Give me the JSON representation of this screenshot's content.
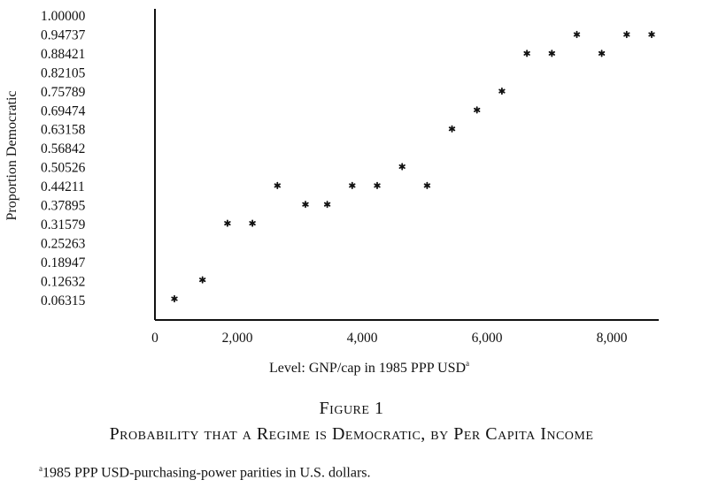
{
  "chart_data": {
    "type": "scatter",
    "xlabel": "Level: GNP/cap in 1985 PPP USD",
    "xlabel_note_marker": "a",
    "ylabel": "Proportion Democratic",
    "xlim": [
      0,
      8200
    ],
    "ylim": [
      0,
      1.0
    ],
    "x_ticks": [
      "0",
      "2,000",
      "4,000",
      "6,000",
      "8,000"
    ],
    "y_ticks": [
      "1.00000",
      "0.94737",
      "0.88421",
      "0.82105",
      "0.75789",
      "0.69474",
      "0.63158",
      "0.56842",
      "0.50526",
      "0.44211",
      "0.37895",
      "0.31579",
      "0.25263",
      "0.18947",
      "0.12632",
      "0.06315"
    ],
    "marker": "*",
    "points": [
      {
        "x": 350,
        "y": 0.06315
      },
      {
        "x": 800,
        "y": 0.12632
      },
      {
        "x": 1200,
        "y": 0.31579
      },
      {
        "x": 1600,
        "y": 0.31579
      },
      {
        "x": 2000,
        "y": 0.44211
      },
      {
        "x": 2450,
        "y": 0.37895
      },
      {
        "x": 2800,
        "y": 0.37895
      },
      {
        "x": 3200,
        "y": 0.44211
      },
      {
        "x": 3600,
        "y": 0.44211
      },
      {
        "x": 4000,
        "y": 0.50526
      },
      {
        "x": 4400,
        "y": 0.44211
      },
      {
        "x": 4800,
        "y": 0.63158
      },
      {
        "x": 5200,
        "y": 0.69474
      },
      {
        "x": 5600,
        "y": 0.75789
      },
      {
        "x": 6000,
        "y": 0.88421
      },
      {
        "x": 6400,
        "y": 0.88421
      },
      {
        "x": 6800,
        "y": 0.94737
      },
      {
        "x": 7200,
        "y": 0.88421
      },
      {
        "x": 7600,
        "y": 0.94737
      },
      {
        "x": 8000,
        "y": 0.94737
      }
    ],
    "grid": false,
    "legend": "none"
  },
  "figure_label": "Figure 1",
  "figure_title": "Probability that a Regime is Democratic, by Per Capita Income",
  "footnote": {
    "marker": "a",
    "text_part1": "1985 ",
    "text_part2": "PPP USD",
    "text_part3": "-purchasing-power parities in U.S. dollars."
  }
}
